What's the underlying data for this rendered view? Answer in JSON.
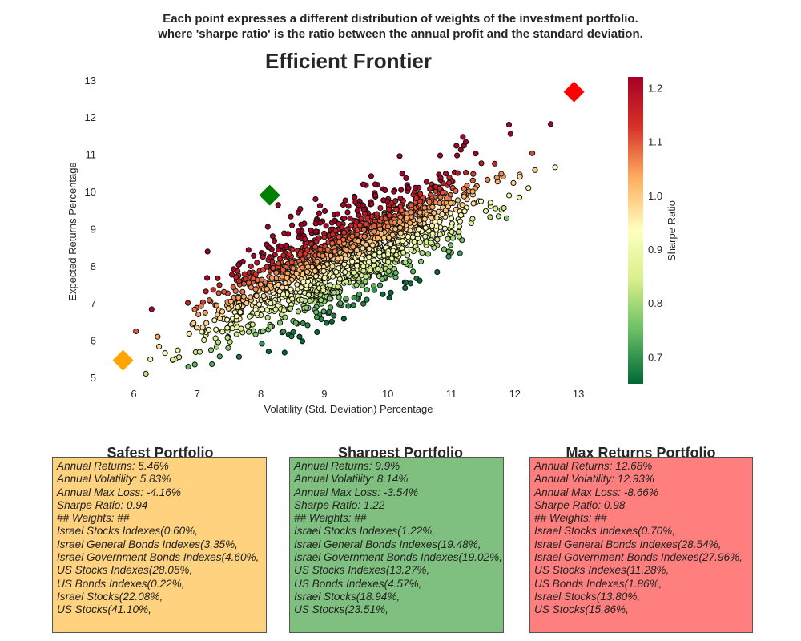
{
  "header": {
    "subtitle_line1": "Each point expresses a different distribution of weights of the investment portfolio.",
    "subtitle_line2": "where 'sharpe ratio' is the ratio between the annual profit and the standard deviation."
  },
  "chart_data": {
    "type": "scatter",
    "title": "Efficient Frontier",
    "xlabel": "Volatility (Std. Deviation) Percentage",
    "ylabel": "Expected Returns Percentage",
    "xlim": [
      5.5,
      13.5
    ],
    "ylim": [
      4.8,
      13.2
    ],
    "xticks": [
      "6",
      "7",
      "8",
      "9",
      "10",
      "11",
      "12",
      "13"
    ],
    "yticks": [
      "5",
      "6",
      "7",
      "8",
      "9",
      "10",
      "11",
      "12",
      "13"
    ],
    "colorbar": {
      "label": "Sharpe Ratio",
      "range": [
        0.65,
        1.22
      ],
      "ticks": [
        "0.7",
        "0.8",
        "0.9",
        "1.0",
        "1.1",
        "1.2"
      ],
      "colormap": [
        "#006837",
        "#66bd63",
        "#d9ef8b",
        "#ffffbf",
        "#fdae61",
        "#d73027",
        "#a50026"
      ]
    },
    "grid": false,
    "n_random_points": 1800,
    "highlights": [
      {
        "name": "Safest Portfolio",
        "x": 5.83,
        "y": 5.46,
        "color": "#ffa500",
        "marker": "diamond"
      },
      {
        "name": "Sharpest Portfolio",
        "x": 8.14,
        "y": 9.9,
        "color": "#008000",
        "marker": "diamond"
      },
      {
        "name": "Max Returns Portfolio",
        "x": 12.93,
        "y": 12.68,
        "color": "#ff0000",
        "marker": "diamond"
      }
    ]
  },
  "panels": [
    {
      "title": "Safest Portfolio",
      "bg": "#ffd27f",
      "lines": [
        "Annual Returns: 5.46%",
        "Annual Volatility: 5.83%",
        "Annual Max Loss: -4.16%",
        "Sharpe Ratio: 0.94",
        "## Weights: ##",
        "Israel Stocks Indexes(0.60%,",
        "Israel General Bonds Indexes(3.35%,",
        "Israel Government Bonds Indexes(4.60%,",
        "US Stocks Indexes(28.05%,",
        "US Bonds Indexes(0.22%,",
        "Israel Stocks(22.08%,",
        "US Stocks(41.10%,"
      ]
    },
    {
      "title": "Sharpest Portfolio",
      "bg": "#7fbf7f",
      "lines": [
        "Annual Returns: 9.9%",
        "Annual Volatility: 8.14%",
        "Annual Max Loss: -3.54%",
        "Sharpe Ratio: 1.22",
        "## Weights: ##",
        "Israel Stocks Indexes(1.22%,",
        "Israel General Bonds Indexes(19.48%,",
        "Israel Government Bonds Indexes(19.02%,",
        "US Stocks Indexes(13.27%,",
        "US Bonds Indexes(4.57%,",
        "Israel Stocks(18.94%,",
        "US Stocks(23.51%,"
      ]
    },
    {
      "title": "Max Returns Portfolio",
      "bg": "#ff7f7f",
      "lines": [
        "Annual Returns: 12.68%",
        "Annual Volatility: 12.93%",
        "Annual Max Loss: -8.66%",
        "Sharpe Ratio: 0.98",
        "## Weights: ##",
        "Israel Stocks Indexes(0.70%,",
        "Israel General Bonds Indexes(28.54%,",
        "Israel Government Bonds Indexes(27.96%,",
        "US Stocks Indexes(11.28%,",
        "US Bonds Indexes(1.86%,",
        "Israel Stocks(13.80%,",
        "US Stocks(15.86%,"
      ]
    }
  ]
}
